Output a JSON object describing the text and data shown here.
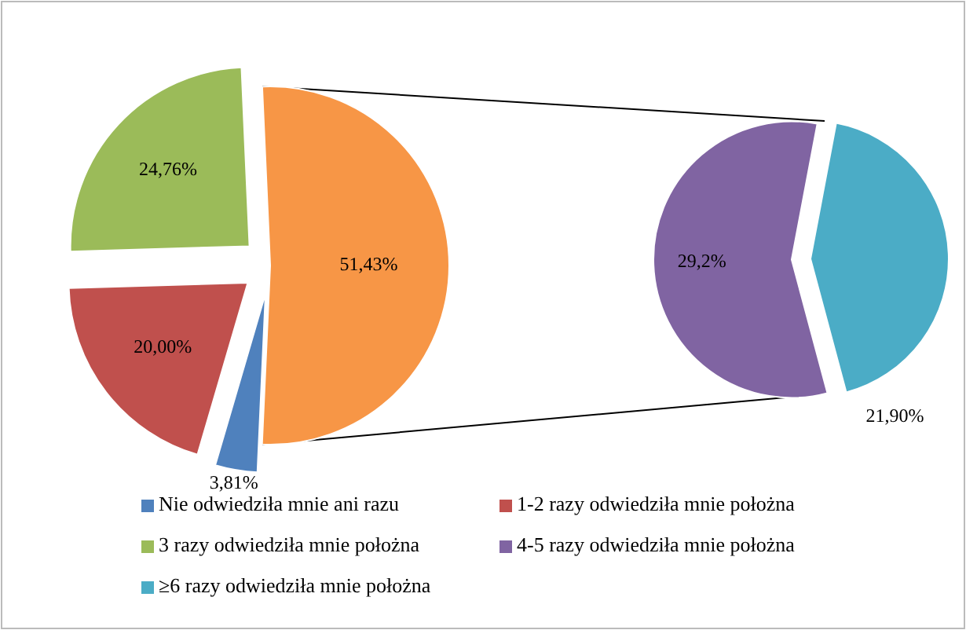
{
  "chart_data": [
    {
      "type": "pie",
      "categories": [
        "Nie odwiedziła mnie ani razu",
        "1-2 razy odwiedziła mnie położna",
        "3 razy odwiedziła mnie położna",
        null
      ],
      "values": [
        3.81,
        20.0,
        24.76,
        51.43
      ],
      "value_labels": [
        "3,81%",
        "20,00%",
        "24,76%",
        "51,43%"
      ],
      "colors": [
        "#4f81bd",
        "#c0504d",
        "#9bbb59",
        "#f79646"
      ],
      "legend": "bottom"
    },
    {
      "type": "pie",
      "categories": [
        "4-5 razy odwiedziła mnie położna",
        "≥6 razy odwiedziła mnie położna"
      ],
      "values": [
        29.2,
        21.9
      ],
      "value_labels": [
        "29,2%",
        "21,90%"
      ],
      "colors": [
        "#8064a2",
        "#4bacc6"
      ],
      "legend": "bottom"
    }
  ]
}
